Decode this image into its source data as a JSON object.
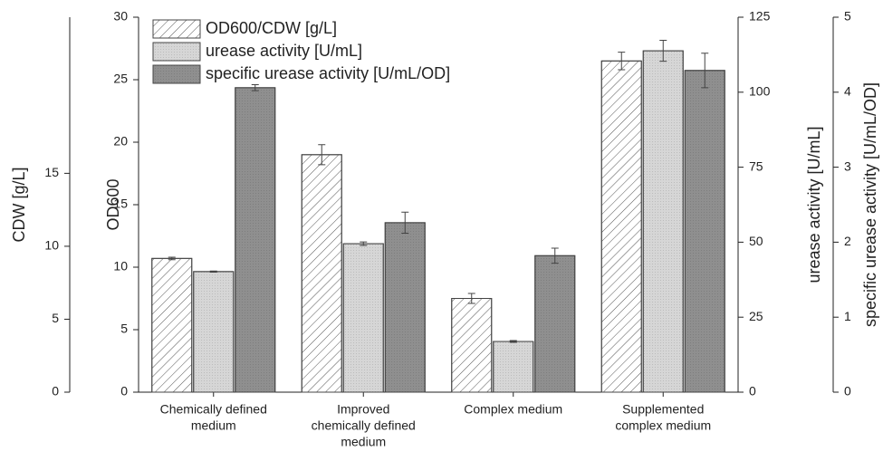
{
  "chart_data": {
    "type": "bar",
    "categories": [
      [
        "Chemically defined",
        "medium"
      ],
      [
        "Improved",
        "chemically defined",
        "medium"
      ],
      [
        "Complex medium"
      ],
      [
        "Supplemented",
        "complex medium"
      ]
    ],
    "axes": [
      {
        "label": "CDW [g/L]",
        "lim": [
          0,
          25.7
        ],
        "ticks": [
          0,
          5,
          10,
          15
        ],
        "side": "left-outer"
      },
      {
        "label": "OD600",
        "lim": [
          0,
          30
        ],
        "ticks": [
          0,
          5,
          10,
          15,
          20,
          25,
          30
        ],
        "side": "left"
      },
      {
        "label": "urease activity [U/mL]",
        "lim": [
          0,
          125
        ],
        "ticks": [
          0,
          25,
          50,
          75,
          100,
          125
        ],
        "side": "right"
      },
      {
        "label": "specific urease activity [U/mL/OD]",
        "lim": [
          0,
          5
        ],
        "ticks": [
          0,
          1,
          2,
          3,
          4,
          5
        ],
        "side": "right-outer"
      }
    ],
    "legend": "top-left",
    "series": [
      {
        "name": "OD600/CDW [g/L]",
        "color": "#ffffff",
        "pattern": "hatch",
        "axis": 1,
        "values": [
          10.7,
          19.0,
          7.5,
          26.5
        ],
        "errors": [
          0.1,
          0.8,
          0.4,
          0.7
        ]
      },
      {
        "name": "urease activity [U/mL]",
        "color": "#d6d6d6",
        "pattern": "dots",
        "axis": 2,
        "values": [
          40.2,
          49.5,
          16.9,
          113.8
        ],
        "errors": [
          0.2,
          0.6,
          0.3,
          3.5
        ]
      },
      {
        "name": "specific urease activity [U/mL/OD]",
        "color": "#8f8f8f",
        "pattern": "dots",
        "axis": 3,
        "values": [
          4.06,
          2.26,
          1.82,
          4.29
        ],
        "errors": [
          0.04,
          0.14,
          0.1,
          0.23
        ]
      }
    ]
  }
}
